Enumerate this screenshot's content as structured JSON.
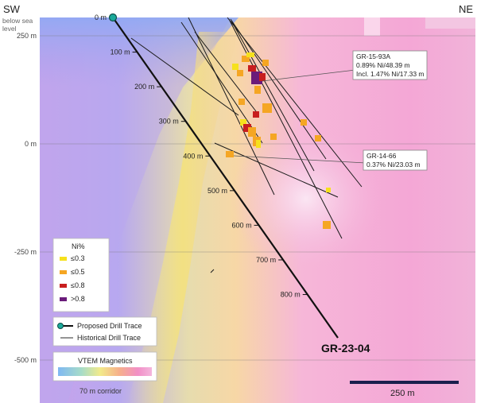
{
  "header": {
    "left_direction": "SW",
    "right_direction": "NE",
    "datum_label_line1": "below sea",
    "datum_label_line2": "level"
  },
  "elevation_axis": {
    "ticks": [
      {
        "label": "250 m",
        "value": 250
      },
      {
        "label": "0 m",
        "value": 0
      },
      {
        "label": "-250 m",
        "value": -250
      },
      {
        "label": "-500 m",
        "value": -500
      }
    ]
  },
  "proposed_hole": {
    "name": "GR-23-04",
    "depth_markers": [
      {
        "label": "0 m",
        "depth": 0
      },
      {
        "label": "100 m",
        "depth": 100
      },
      {
        "label": "200 m",
        "depth": 200
      },
      {
        "label": "300 m",
        "depth": 300
      },
      {
        "label": "400 m",
        "depth": 400
      },
      {
        "label": "500 m",
        "depth": 500
      },
      {
        "label": "600 m",
        "depth": 600
      },
      {
        "label": "700 m",
        "depth": 700
      },
      {
        "label": "800 m",
        "depth": 800
      }
    ]
  },
  "callouts": [
    {
      "lines": [
        "GR-15-93A",
        "0.89% Ni/48.39 m",
        "Incl. 1.47% Ni/17.33 m"
      ]
    },
    {
      "lines": [
        "GR-14-66",
        "0.37% Ni/23.03 m"
      ]
    }
  ],
  "ni_legend": {
    "title": "Ni%",
    "items": [
      {
        "label": "≤0.3",
        "color": "#f6e11d"
      },
      {
        "label": "≤0.5",
        "color": "#f5a623"
      },
      {
        "label": "≤0.8",
        "color": "#c81e1e"
      },
      {
        "label": ">0.8",
        "color": "#6a1b7a"
      }
    ]
  },
  "trace_legend": {
    "proposed_label": "Proposed Drill Trace",
    "historical_label": "Historical Drill Trace",
    "proposed_color": "#1aa99a"
  },
  "magnetics_legend": {
    "title": "VTEM Magnetics",
    "corridor_label": "70 m corridor"
  },
  "scale_bar": {
    "label": "250 m"
  }
}
